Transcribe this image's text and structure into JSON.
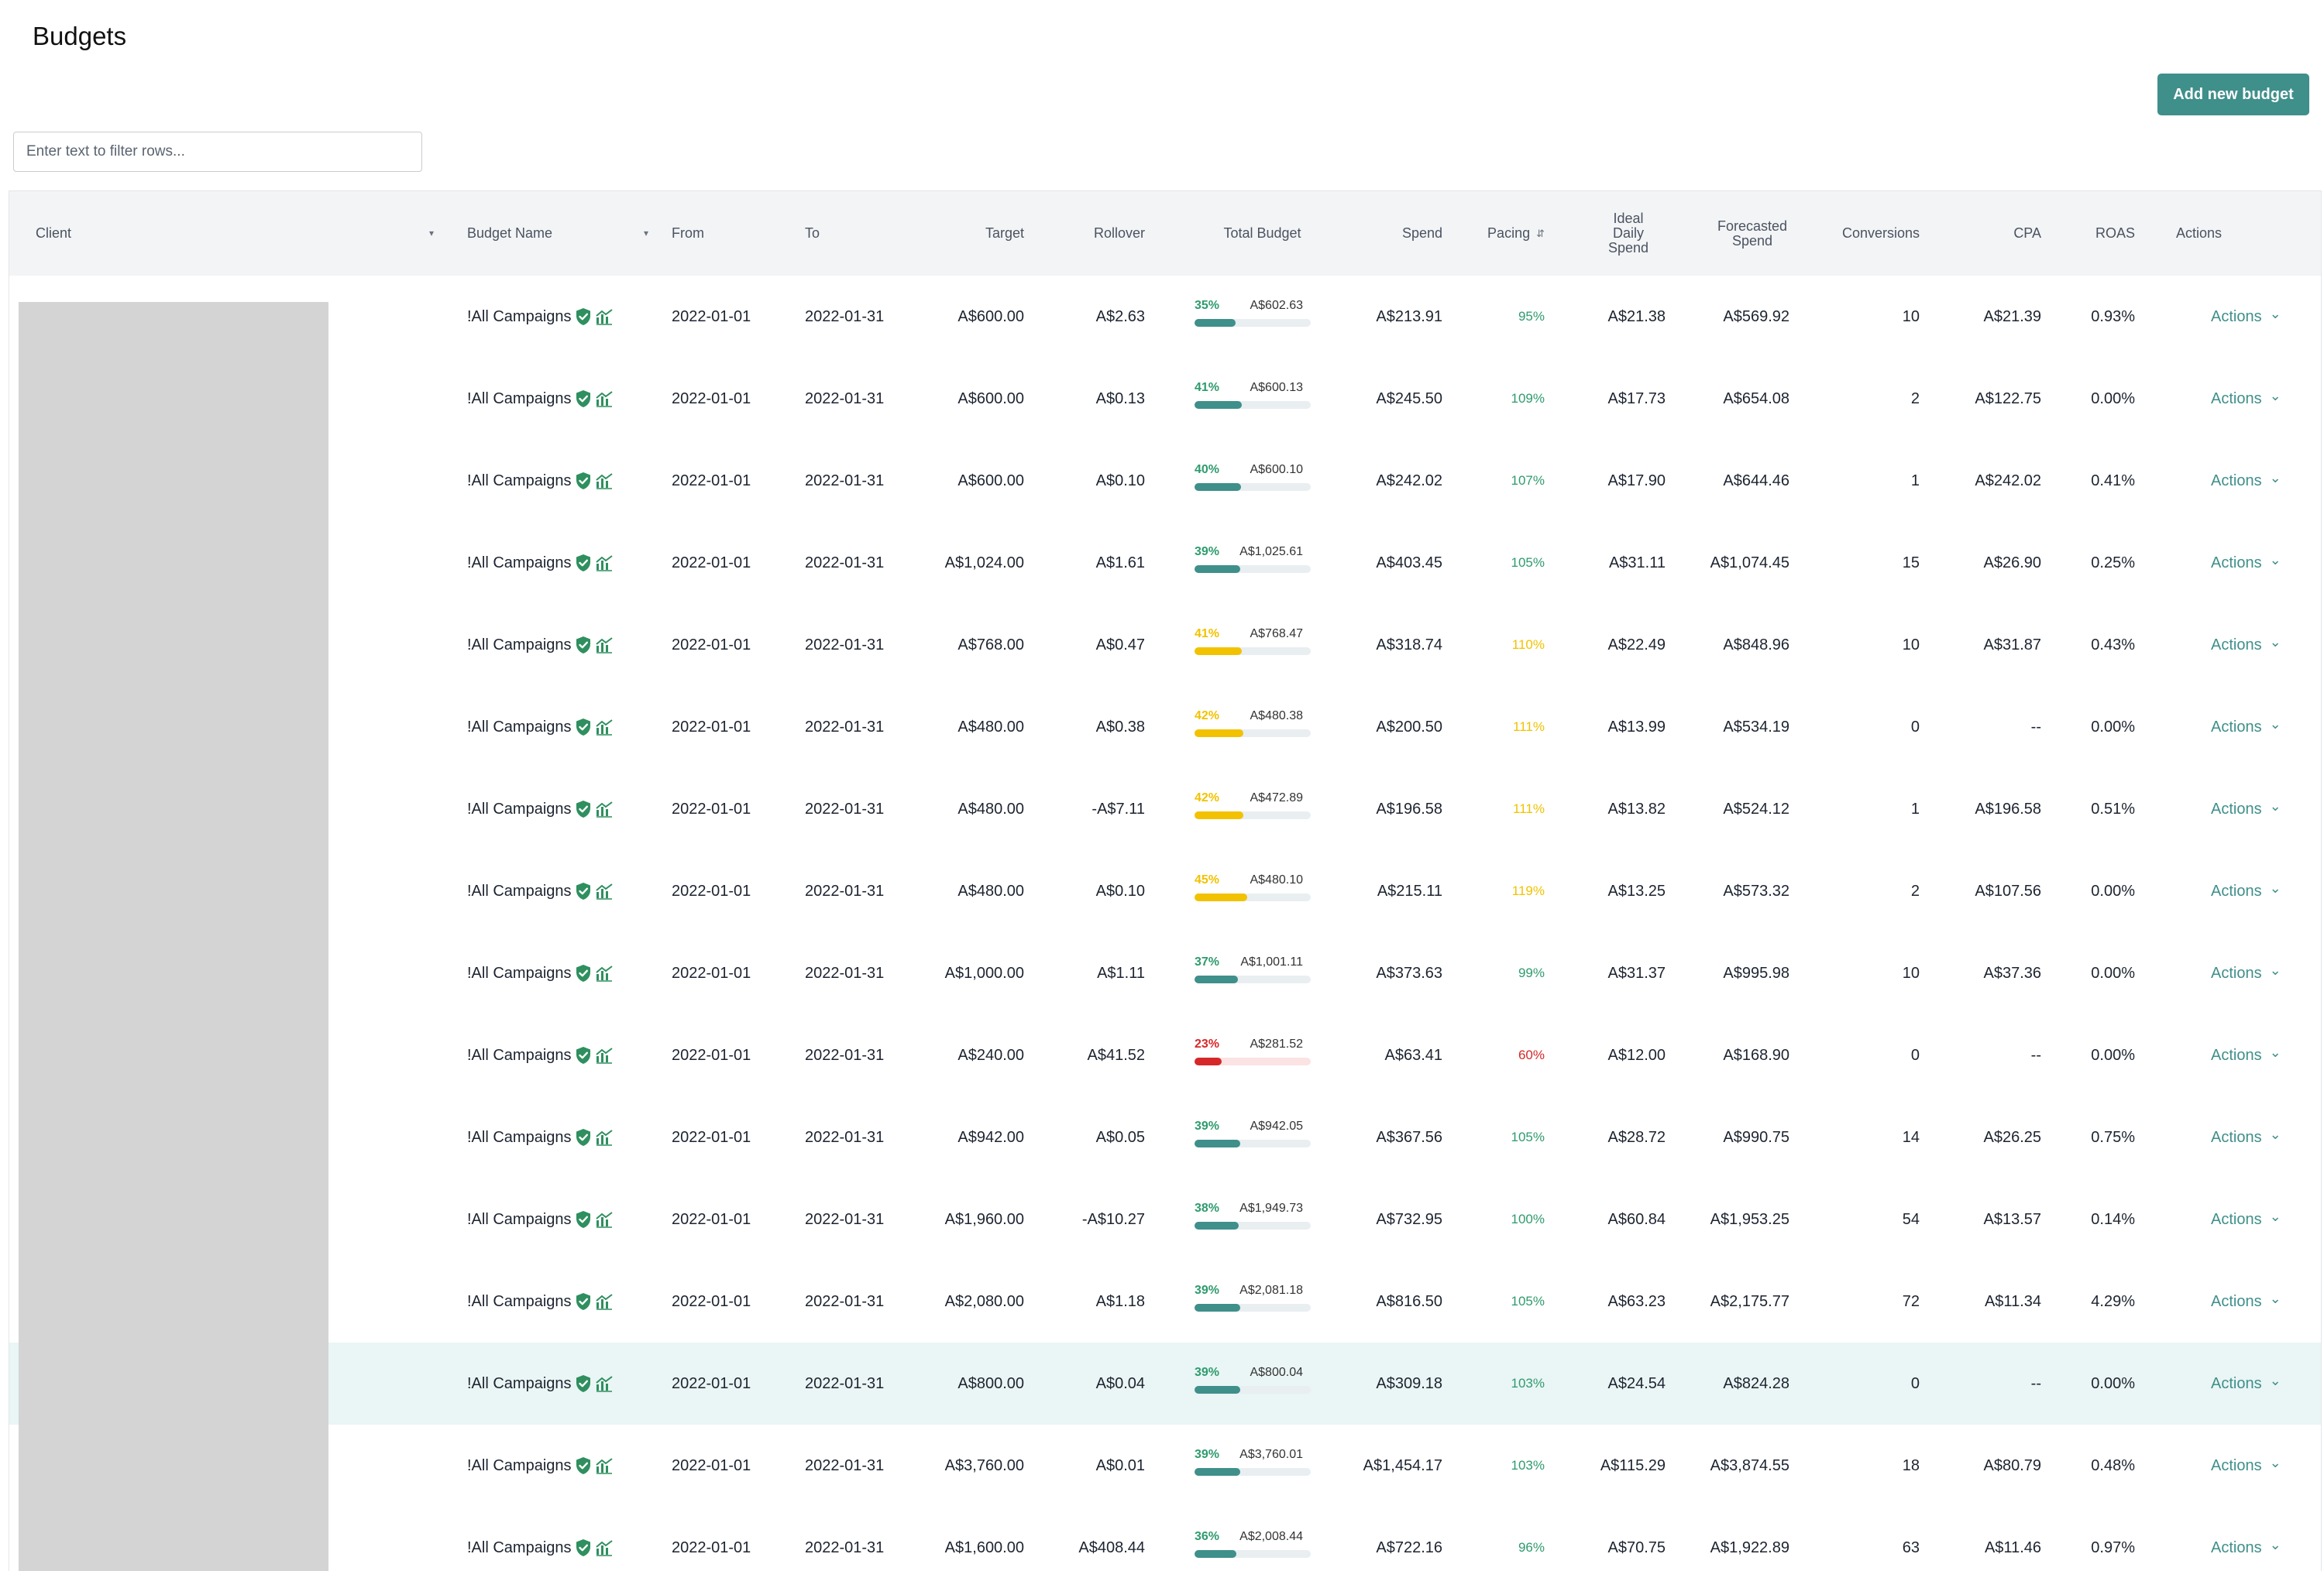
{
  "page": {
    "title": "Budgets",
    "add_button": "Add new budget",
    "filter_placeholder": "Enter text to filter rows..."
  },
  "colors": {
    "accent": "#3f8f8a",
    "green": "#2e9b6e",
    "yellow": "#f2c200",
    "red": "#d62828",
    "highlight_row": "#eaf5f5"
  },
  "columns": [
    {
      "key": "client",
      "label": "Client",
      "dropdown": true
    },
    {
      "key": "budget_name",
      "label": "Budget Name",
      "dropdown": true
    },
    {
      "key": "from",
      "label": "From"
    },
    {
      "key": "to",
      "label": "To"
    },
    {
      "key": "target",
      "label": "Target"
    },
    {
      "key": "rollover",
      "label": "Rollover"
    },
    {
      "key": "total_budget",
      "label": "Total Budget"
    },
    {
      "key": "spend",
      "label": "Spend"
    },
    {
      "key": "pacing",
      "label": "Pacing",
      "sort": true
    },
    {
      "key": "ideal_daily",
      "label": "Ideal\nDaily\nSpend"
    },
    {
      "key": "forecasted",
      "label": "Forecasted\nSpend"
    },
    {
      "key": "conversions",
      "label": "Conversions"
    },
    {
      "key": "cpa",
      "label": "CPA"
    },
    {
      "key": "roas",
      "label": "ROAS"
    },
    {
      "key": "actions",
      "label": "Actions"
    }
  ],
  "rows": [
    {
      "budget_name": "!All Campaigns",
      "from": "2022-01-01",
      "to": "2022-01-31",
      "target": "A$600.00",
      "rollover": "A$2.63",
      "tb_pct": "35%",
      "tb_amount": "A$602.63",
      "tb_level": 0.35,
      "tb_status": "green",
      "spend": "A$213.91",
      "pacing": "95%",
      "pacing_status": "green",
      "ideal_daily": "A$21.38",
      "forecasted": "A$569.92",
      "conversions": "10",
      "cpa": "A$21.39",
      "roas": "0.93%",
      "action": "Actions",
      "highlight": false
    },
    {
      "budget_name": "!All Campaigns",
      "from": "2022-01-01",
      "to": "2022-01-31",
      "target": "A$600.00",
      "rollover": "A$0.13",
      "tb_pct": "41%",
      "tb_amount": "A$600.13",
      "tb_level": 0.41,
      "tb_status": "green",
      "spend": "A$245.50",
      "pacing": "109%",
      "pacing_status": "green",
      "ideal_daily": "A$17.73",
      "forecasted": "A$654.08",
      "conversions": "2",
      "cpa": "A$122.75",
      "roas": "0.00%",
      "action": "Actions",
      "highlight": false
    },
    {
      "budget_name": "!All Campaigns",
      "from": "2022-01-01",
      "to": "2022-01-31",
      "target": "A$600.00",
      "rollover": "A$0.10",
      "tb_pct": "40%",
      "tb_amount": "A$600.10",
      "tb_level": 0.4,
      "tb_status": "green",
      "spend": "A$242.02",
      "pacing": "107%",
      "pacing_status": "green",
      "ideal_daily": "A$17.90",
      "forecasted": "A$644.46",
      "conversions": "1",
      "cpa": "A$242.02",
      "roas": "0.41%",
      "action": "Actions",
      "highlight": false
    },
    {
      "budget_name": "!All Campaigns",
      "from": "2022-01-01",
      "to": "2022-01-31",
      "target": "A$1,024.00",
      "rollover": "A$1.61",
      "tb_pct": "39%",
      "tb_amount": "A$1,025.61",
      "tb_level": 0.39,
      "tb_status": "green",
      "spend": "A$403.45",
      "pacing": "105%",
      "pacing_status": "green",
      "ideal_daily": "A$31.11",
      "forecasted": "A$1,074.45",
      "conversions": "15",
      "cpa": "A$26.90",
      "roas": "0.25%",
      "action": "Actions",
      "highlight": false
    },
    {
      "budget_name": "!All Campaigns",
      "from": "2022-01-01",
      "to": "2022-01-31",
      "target": "A$768.00",
      "rollover": "A$0.47",
      "tb_pct": "41%",
      "tb_amount": "A$768.47",
      "tb_level": 0.41,
      "tb_status": "yellow",
      "spend": "A$318.74",
      "pacing": "110%",
      "pacing_status": "yellow",
      "ideal_daily": "A$22.49",
      "forecasted": "A$848.96",
      "conversions": "10",
      "cpa": "A$31.87",
      "roas": "0.43%",
      "action": "Actions",
      "highlight": false
    },
    {
      "budget_name": "!All Campaigns",
      "from": "2022-01-01",
      "to": "2022-01-31",
      "target": "A$480.00",
      "rollover": "A$0.38",
      "tb_pct": "42%",
      "tb_amount": "A$480.38",
      "tb_level": 0.42,
      "tb_status": "yellow",
      "spend": "A$200.50",
      "pacing": "111%",
      "pacing_status": "yellow",
      "ideal_daily": "A$13.99",
      "forecasted": "A$534.19",
      "conversions": "0",
      "cpa": "--",
      "roas": "0.00%",
      "action": "Actions",
      "highlight": false
    },
    {
      "budget_name": "!All Campaigns",
      "from": "2022-01-01",
      "to": "2022-01-31",
      "target": "A$480.00",
      "rollover": "-A$7.11",
      "tb_pct": "42%",
      "tb_amount": "A$472.89",
      "tb_level": 0.42,
      "tb_status": "yellow",
      "spend": "A$196.58",
      "pacing": "111%",
      "pacing_status": "yellow",
      "ideal_daily": "A$13.82",
      "forecasted": "A$524.12",
      "conversions": "1",
      "cpa": "A$196.58",
      "roas": "0.51%",
      "action": "Actions",
      "highlight": false
    },
    {
      "budget_name": "!All Campaigns",
      "from": "2022-01-01",
      "to": "2022-01-31",
      "target": "A$480.00",
      "rollover": "A$0.10",
      "tb_pct": "45%",
      "tb_amount": "A$480.10",
      "tb_level": 0.45,
      "tb_status": "yellow",
      "spend": "A$215.11",
      "pacing": "119%",
      "pacing_status": "yellow",
      "ideal_daily": "A$13.25",
      "forecasted": "A$573.32",
      "conversions": "2",
      "cpa": "A$107.56",
      "roas": "0.00%",
      "action": "Actions",
      "highlight": false
    },
    {
      "budget_name": "!All Campaigns",
      "from": "2022-01-01",
      "to": "2022-01-31",
      "target": "A$1,000.00",
      "rollover": "A$1.11",
      "tb_pct": "37%",
      "tb_amount": "A$1,001.11",
      "tb_level": 0.37,
      "tb_status": "green",
      "spend": "A$373.63",
      "pacing": "99%",
      "pacing_status": "green",
      "ideal_daily": "A$31.37",
      "forecasted": "A$995.98",
      "conversions": "10",
      "cpa": "A$37.36",
      "roas": "0.00%",
      "action": "Actions",
      "highlight": false
    },
    {
      "budget_name": "!All Campaigns",
      "from": "2022-01-01",
      "to": "2022-01-31",
      "target": "A$240.00",
      "rollover": "A$41.52",
      "tb_pct": "23%",
      "tb_amount": "A$281.52",
      "tb_level": 0.23,
      "tb_status": "red",
      "spend": "A$63.41",
      "pacing": "60%",
      "pacing_status": "red",
      "ideal_daily": "A$12.00",
      "forecasted": "A$168.90",
      "conversions": "0",
      "cpa": "--",
      "roas": "0.00%",
      "action": "Actions",
      "highlight": false
    },
    {
      "budget_name": "!All Campaigns",
      "from": "2022-01-01",
      "to": "2022-01-31",
      "target": "A$942.00",
      "rollover": "A$0.05",
      "tb_pct": "39%",
      "tb_amount": "A$942.05",
      "tb_level": 0.39,
      "tb_status": "green",
      "spend": "A$367.56",
      "pacing": "105%",
      "pacing_status": "green",
      "ideal_daily": "A$28.72",
      "forecasted": "A$990.75",
      "conversions": "14",
      "cpa": "A$26.25",
      "roas": "0.75%",
      "action": "Actions",
      "highlight": false
    },
    {
      "budget_name": "!All Campaigns",
      "from": "2022-01-01",
      "to": "2022-01-31",
      "target": "A$1,960.00",
      "rollover": "-A$10.27",
      "tb_pct": "38%",
      "tb_amount": "A$1,949.73",
      "tb_level": 0.38,
      "tb_status": "green",
      "spend": "A$732.95",
      "pacing": "100%",
      "pacing_status": "green",
      "ideal_daily": "A$60.84",
      "forecasted": "A$1,953.25",
      "conversions": "54",
      "cpa": "A$13.57",
      "roas": "0.14%",
      "action": "Actions",
      "highlight": false
    },
    {
      "budget_name": "!All Campaigns",
      "from": "2022-01-01",
      "to": "2022-01-31",
      "target": "A$2,080.00",
      "rollover": "A$1.18",
      "tb_pct": "39%",
      "tb_amount": "A$2,081.18",
      "tb_level": 0.39,
      "tb_status": "green",
      "spend": "A$816.50",
      "pacing": "105%",
      "pacing_status": "green",
      "ideal_daily": "A$63.23",
      "forecasted": "A$2,175.77",
      "conversions": "72",
      "cpa": "A$11.34",
      "roas": "4.29%",
      "action": "Actions",
      "highlight": false
    },
    {
      "budget_name": "!All Campaigns",
      "from": "2022-01-01",
      "to": "2022-01-31",
      "target": "A$800.00",
      "rollover": "A$0.04",
      "tb_pct": "39%",
      "tb_amount": "A$800.04",
      "tb_level": 0.39,
      "tb_status": "green",
      "spend": "A$309.18",
      "pacing": "103%",
      "pacing_status": "green",
      "ideal_daily": "A$24.54",
      "forecasted": "A$824.28",
      "conversions": "0",
      "cpa": "--",
      "roas": "0.00%",
      "action": "Actions",
      "highlight": true
    },
    {
      "budget_name": "!All Campaigns",
      "from": "2022-01-01",
      "to": "2022-01-31",
      "target": "A$3,760.00",
      "rollover": "A$0.01",
      "tb_pct": "39%",
      "tb_amount": "A$3,760.01",
      "tb_level": 0.39,
      "tb_status": "green",
      "spend": "A$1,454.17",
      "pacing": "103%",
      "pacing_status": "green",
      "ideal_daily": "A$115.29",
      "forecasted": "A$3,874.55",
      "conversions": "18",
      "cpa": "A$80.79",
      "roas": "0.48%",
      "action": "Actions",
      "highlight": false
    },
    {
      "budget_name": "!All Campaigns",
      "from": "2022-01-01",
      "to": "2022-01-31",
      "target": "A$1,600.00",
      "rollover": "A$408.44",
      "tb_pct": "36%",
      "tb_amount": "A$2,008.44",
      "tb_level": 0.36,
      "tb_status": "green",
      "spend": "A$722.16",
      "pacing": "96%",
      "pacing_status": "green",
      "ideal_daily": "A$70.75",
      "forecasted": "A$1,922.89",
      "conversions": "63",
      "cpa": "A$11.46",
      "roas": "0.97%",
      "action": "Actions",
      "highlight": false
    }
  ]
}
